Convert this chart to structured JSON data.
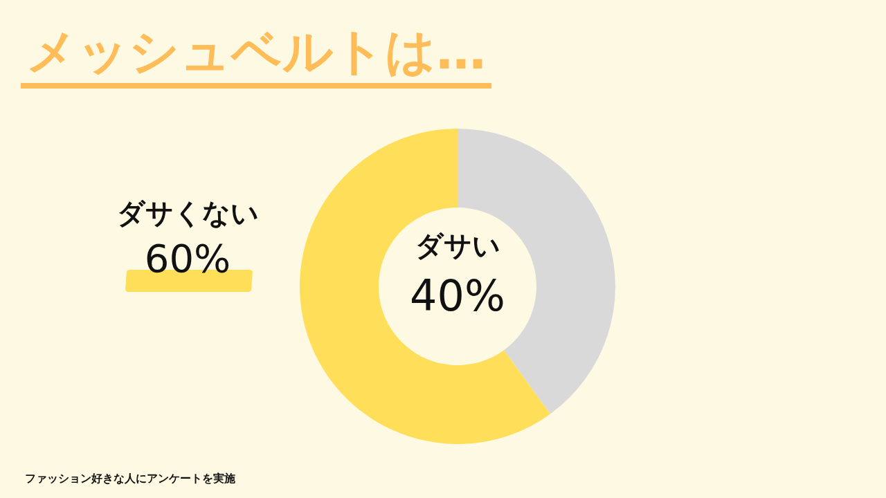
{
  "chart_data": {
    "type": "donut",
    "title": "メッシュベルトは…",
    "categories": [
      "ダサい",
      "ダサくない"
    ],
    "values": [
      40,
      60
    ],
    "colors": [
      "#d9d9d9",
      "#ffde59"
    ],
    "value_labels": [
      "40%",
      "60%"
    ],
    "legend": false,
    "annotations": [
      "ファッション好きな人にアンケートを実施"
    ]
  }
}
